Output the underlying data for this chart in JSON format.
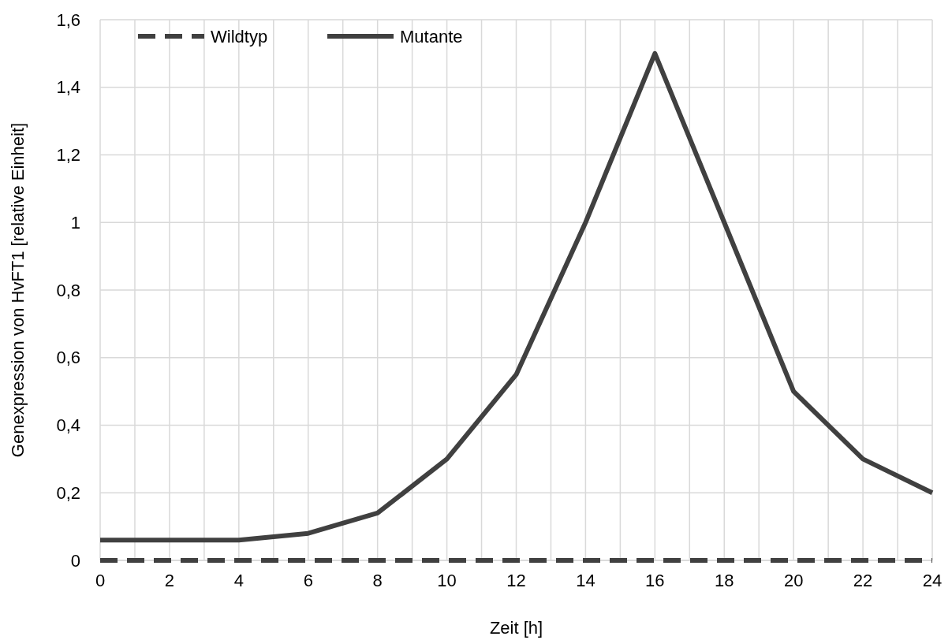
{
  "chart_data": {
    "type": "line",
    "xlabel": "Zeit [h]",
    "ylabel": "Genexpression von HvFT1 [relative Einheit]",
    "x": [
      0,
      2,
      4,
      6,
      8,
      10,
      12,
      14,
      16,
      18,
      20,
      22,
      24
    ],
    "series": [
      {
        "name": "Wildtyp",
        "color": "#404040",
        "line_style": "dashed",
        "values": [
          0,
          0,
          0,
          0,
          0,
          0,
          0,
          0,
          0,
          0,
          0,
          0,
          0
        ]
      },
      {
        "name": "Mutante",
        "color": "#404040",
        "line_style": "solid",
        "values": [
          0.06,
          0.06,
          0.06,
          0.08,
          0.14,
          0.3,
          0.55,
          1.0,
          1.5,
          1.0,
          0.5,
          0.3,
          0.2
        ]
      }
    ],
    "xlim": [
      0,
      24
    ],
    "xticks": [
      0,
      {
        "value": 1,
        "label": null
      },
      2,
      {
        "value": 3,
        "label": null
      },
      4,
      {
        "value": 5,
        "label": null
      },
      6,
      {
        "value": 7,
        "label": null
      },
      8,
      {
        "value": 9,
        "label": null
      },
      10,
      {
        "value": 11,
        "label": null
      },
      12,
      {
        "value": 13,
        "label": null
      },
      14,
      {
        "value": 15,
        "label": null
      },
      16,
      {
        "value": 17,
        "label": null
      },
      18,
      {
        "value": 19,
        "label": null
      },
      20,
      {
        "value": 21,
        "label": null
      },
      22,
      {
        "value": 23,
        "label": null
      },
      24
    ],
    "ylim": [
      0,
      1.6
    ],
    "yticks": [
      {
        "value": 0,
        "label": "0"
      },
      {
        "value": 0.2,
        "label": "0,2"
      },
      {
        "value": 0.4,
        "label": "0,4"
      },
      {
        "value": 0.6,
        "label": "0,6"
      },
      {
        "value": 0.8,
        "label": "0,8"
      },
      {
        "value": 1,
        "label": "1"
      },
      {
        "value": 1.2,
        "label": "1,2"
      },
      {
        "value": 1.4,
        "label": "1,4"
      },
      {
        "value": 1.6,
        "label": "1,6"
      }
    ],
    "grid": true,
    "legend": "top left",
    "marker": "none"
  }
}
